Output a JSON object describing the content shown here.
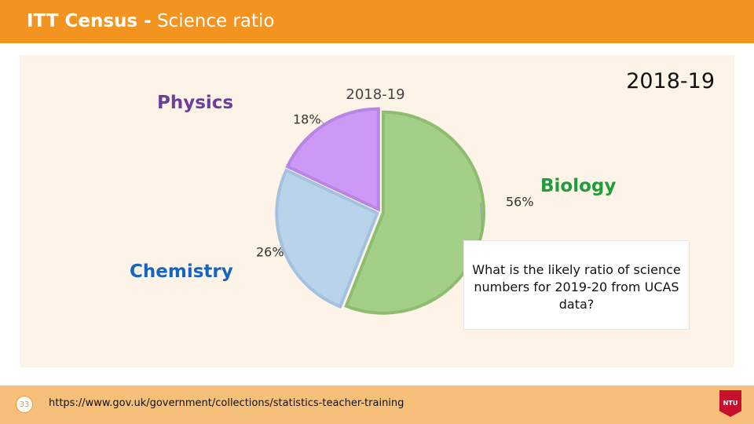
{
  "header": {
    "title_bold": "ITT Census -",
    "title_rest": " Science ratio"
  },
  "slide": {
    "year_label": "2018-19",
    "subject_labels": {
      "physics": "Physics",
      "chemistry": "Chemistry",
      "biology": "Biology"
    },
    "callout": "What is the likely ratio of science numbers for 2019-20 from UCAS data?"
  },
  "chart_data": {
    "type": "pie",
    "title": "2018-19",
    "categories": [
      "Biology",
      "Chemistry",
      "Physics"
    ],
    "values": [
      56,
      26,
      18
    ],
    "labels": [
      "56%",
      "26%",
      "18%"
    ],
    "colors": [
      "#a4cf87",
      "#b8d3ea",
      "#cc99f5"
    ],
    "edge_colors": [
      "#8cbd70",
      "#a3c2df",
      "#b884e6"
    ]
  },
  "footer": {
    "page_number": "33",
    "url": "https://www.gov.uk/government/collections/statistics-teacher-training",
    "logo_text": "NTU"
  },
  "colors": {
    "accent": "#f39420",
    "footer": "#f7c07a",
    "panel": "#fdf3e7"
  }
}
